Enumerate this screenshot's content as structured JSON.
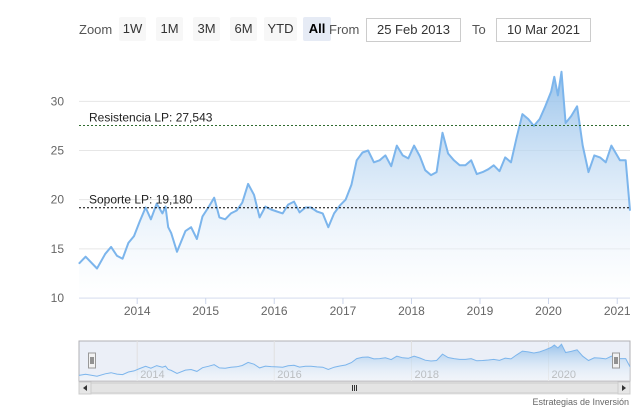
{
  "range_selector": {
    "zoom_label": "Zoom",
    "buttons": [
      "1W",
      "1M",
      "3M",
      "6M",
      "YTD",
      "All"
    ],
    "selected": "All",
    "from_label": "From",
    "from_value": "25 Feb 2013",
    "to_label": "To",
    "to_value": "10 Mar 2021"
  },
  "credit": "Estrategias de Inversión",
  "colors": {
    "line": "#7cb5ec",
    "area_top": "#8fbde9",
    "area_bottom": "#ffffff",
    "grid": "#e6e6e6",
    "resistance": "#2f6b2f",
    "support": "#000000",
    "navigator_mask": "#dde4f2"
  },
  "chart_data": {
    "type": "area",
    "title": "",
    "xlabel": "",
    "ylabel": "",
    "ylim": [
      10,
      34
    ],
    "y_ticks": [
      10,
      15,
      20,
      25,
      30
    ],
    "x_ticks": [
      "2014",
      "2015",
      "2016",
      "2017",
      "2018",
      "2019",
      "2020",
      "2021"
    ],
    "grid": true,
    "x": [
      "2013-02-25",
      "2013-04-01",
      "2013-06-01",
      "2013-07-15",
      "2013-08-15",
      "2013-09-15",
      "2013-10-15",
      "2013-11-15",
      "2013-12-15",
      "2014-01-15",
      "2014-02-15",
      "2014-03-15",
      "2014-04-15",
      "2014-05-15",
      "2014-06-01",
      "2014-06-15",
      "2014-07-01",
      "2014-08-01",
      "2014-09-15",
      "2014-10-15",
      "2014-11-15",
      "2014-12-15",
      "2015-01-15",
      "2015-02-15",
      "2015-03-15",
      "2015-04-15",
      "2015-05-15",
      "2015-06-15",
      "2015-07-15",
      "2015-08-15",
      "2015-09-15",
      "2015-10-15",
      "2015-11-15",
      "2015-12-15",
      "2016-01-15",
      "2016-02-15",
      "2016-03-15",
      "2016-04-15",
      "2016-05-15",
      "2016-06-15",
      "2016-07-15",
      "2016-08-15",
      "2016-09-15",
      "2016-10-15",
      "2016-11-15",
      "2016-12-15",
      "2017-01-15",
      "2017-02-15",
      "2017-03-15",
      "2017-04-15",
      "2017-05-15",
      "2017-06-15",
      "2017-07-15",
      "2017-08-15",
      "2017-09-15",
      "2017-10-15",
      "2017-11-15",
      "2017-12-15",
      "2018-01-15",
      "2018-02-15",
      "2018-03-15",
      "2018-04-15",
      "2018-05-15",
      "2018-06-15",
      "2018-07-15",
      "2018-08-15",
      "2018-09-15",
      "2018-10-15",
      "2018-11-15",
      "2018-12-15",
      "2019-01-15",
      "2019-02-15",
      "2019-03-15",
      "2019-04-15",
      "2019-05-15",
      "2019-06-15",
      "2019-07-15",
      "2019-08-15",
      "2019-09-15",
      "2019-10-15",
      "2019-11-15",
      "2019-12-15",
      "2020-01-15",
      "2020-02-01",
      "2020-02-20",
      "2020-03-10",
      "2020-04-01",
      "2020-05-01",
      "2020-06-01",
      "2020-07-01",
      "2020-08-01",
      "2020-09-01",
      "2020-10-01",
      "2020-11-01",
      "2020-12-01",
      "2021-01-15",
      "2021-02-15",
      "2021-03-10"
    ],
    "series": [
      {
        "name": "",
        "values": [
          13.5,
          14.2,
          13.0,
          14.5,
          15.2,
          14.3,
          14.0,
          15.6,
          16.3,
          17.8,
          19.2,
          18.0,
          19.6,
          18.6,
          19.3,
          17.2,
          16.6,
          14.7,
          16.8,
          17.2,
          16.0,
          18.3,
          19.2,
          20.2,
          18.2,
          18.0,
          18.6,
          18.9,
          19.7,
          21.6,
          20.5,
          18.2,
          19.3,
          19.0,
          18.8,
          18.6,
          19.5,
          19.8,
          18.7,
          19.2,
          19.2,
          18.8,
          18.6,
          17.2,
          18.6,
          19.4,
          20.0,
          21.5,
          24.0,
          24.8,
          25.0,
          23.8,
          24.0,
          24.5,
          23.4,
          25.5,
          24.5,
          24.2,
          25.5,
          24.4,
          23.0,
          22.5,
          22.8,
          26.8,
          24.7,
          24.0,
          23.5,
          23.5,
          24.0,
          22.6,
          22.8,
          23.1,
          23.5,
          22.9,
          24.3,
          23.8,
          26.3,
          28.7,
          28.2,
          27.5,
          28.2,
          29.5,
          31.0,
          32.5,
          30.6,
          33.0,
          27.8,
          28.5,
          29.5,
          25.5,
          22.8,
          24.5,
          24.3,
          23.8,
          25.5,
          24.0,
          24.0,
          18.9
        ]
      }
    ],
    "annotations": [
      {
        "label": "Resistencia LP: 27,543",
        "y": 27.543
      },
      {
        "label": "Soporte LP: 19,180",
        "y": 19.18
      }
    ],
    "navigator": {
      "x_ticks": [
        "2014",
        "2016",
        "2018",
        "2020"
      ]
    }
  }
}
